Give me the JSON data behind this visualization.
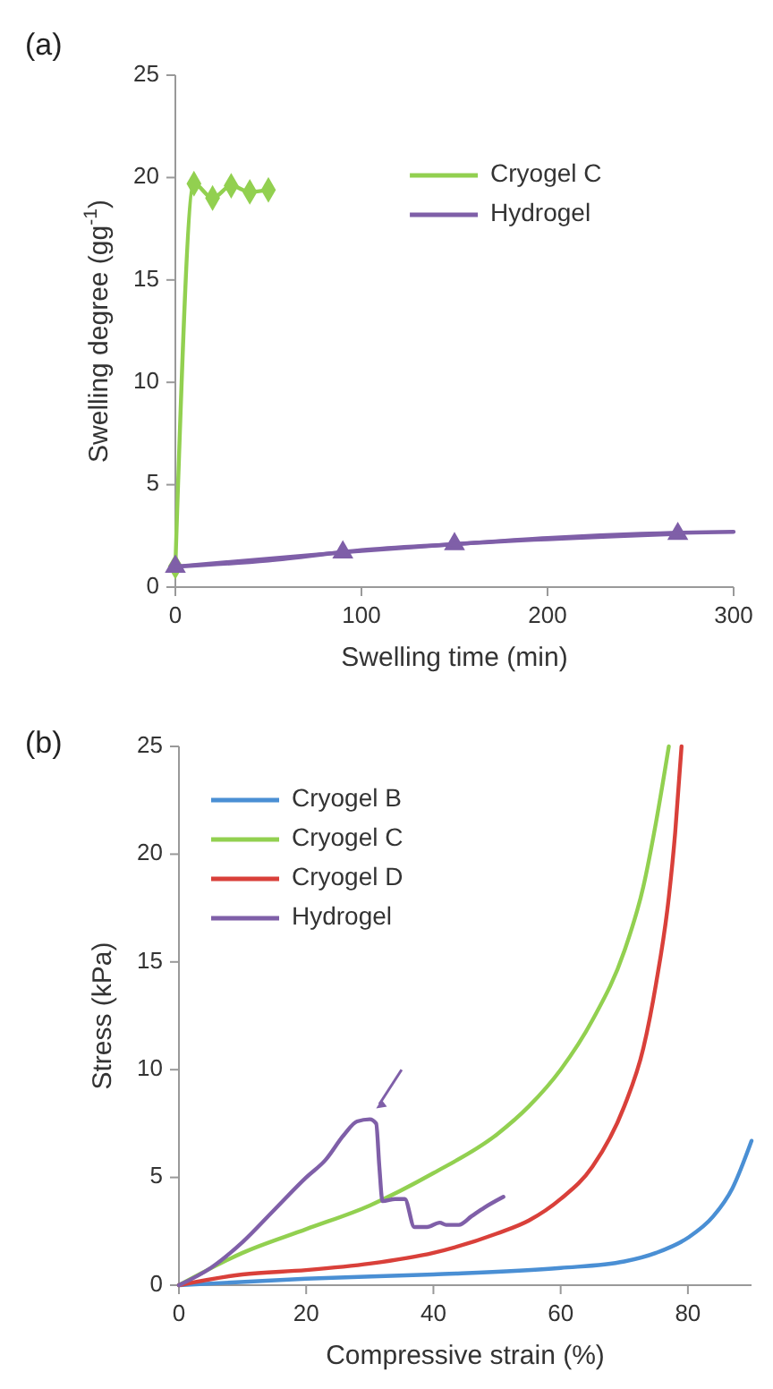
{
  "chart_data": [
    {
      "type": "line",
      "annotations": [
        "(a)"
      ],
      "xlabel": "Swelling time (min)",
      "ylabel": "Swelling degree (gg$^{-1}$)",
      "xlim": [
        0,
        300
      ],
      "xticks": [
        0,
        100,
        200,
        300
      ],
      "ylim": [
        0,
        25
      ],
      "yticks": [
        0,
        5,
        10,
        15,
        20,
        25
      ],
      "legend": "top right",
      "grid": false,
      "series": [
        {
          "name": "Cryogel C",
          "color": "#92d050",
          "marker": "diamond",
          "x": [
            0,
            10,
            20,
            30,
            40,
            50
          ],
          "values": [
            1,
            19.7,
            19.0,
            19.6,
            19.3,
            19.4
          ]
        },
        {
          "name": "Hydrogel",
          "color": "#7f5fa8",
          "marker": "triangle",
          "x": [
            0,
            90,
            150,
            270
          ],
          "values": [
            1.0,
            1.7,
            2.1,
            2.6
          ]
        },
        {
          "type": "line",
          "color": "#7f5fa8",
          "marker": "none",
          "x": [
            0,
            50,
            100,
            150,
            200,
            250,
            300
          ],
          "values": [
            1.0,
            1.3,
            1.8,
            2.1,
            2.4,
            2.6,
            2.7
          ]
        }
      ]
    },
    {
      "type": "line",
      "annotations": [
        "(b)"
      ],
      "xlabel": "Compressive strain (%)",
      "ylabel": "Stress (kPa)",
      "xlim": [
        0,
        90
      ],
      "xticks": [
        0,
        20,
        40,
        60,
        80
      ],
      "ylim": [
        0,
        25
      ],
      "yticks": [
        0,
        5,
        10,
        15,
        20,
        25
      ],
      "legend": "top left",
      "grid": false,
      "marker": "none",
      "series": [
        {
          "name": "Cryogel B",
          "color": "#4a8fd4",
          "x": [
            0,
            20,
            40,
            60,
            70,
            75,
            80,
            84,
            87,
            90
          ],
          "values": [
            0,
            0.3,
            0.5,
            0.8,
            1.1,
            1.5,
            2.2,
            3.2,
            4.5,
            6.7
          ]
        },
        {
          "name": "Cryogel C",
          "color": "#92d050",
          "x": [
            0,
            10,
            20,
            30,
            40,
            50,
            55,
            60,
            65,
            70,
            73,
            75,
            77
          ],
          "values": [
            0,
            1.5,
            2.6,
            3.7,
            5.2,
            7.0,
            8.3,
            10,
            12.3,
            15.5,
            18.5,
            21.5,
            25
          ]
        },
        {
          "name": "Cryogel D",
          "color": "#d9403a",
          "x": [
            0,
            10,
            20,
            30,
            40,
            50,
            55,
            60,
            65,
            70,
            73,
            75,
            77,
            78,
            79
          ],
          "values": [
            0,
            0.5,
            0.7,
            1.0,
            1.5,
            2.4,
            3.0,
            4.0,
            5.5,
            8.3,
            11,
            14,
            18,
            21,
            25
          ]
        },
        {
          "name": "Hydrogel",
          "color": "#7f5fa8",
          "x": [
            0,
            5,
            10,
            15,
            20,
            23,
            26,
            28,
            30,
            31,
            31.5,
            32,
            34,
            35.5,
            37,
            39,
            41,
            42,
            44,
            46,
            48,
            51
          ],
          "values": [
            0,
            0.8,
            2.0,
            3.5,
            5.0,
            5.8,
            7.0,
            7.6,
            7.7,
            7.5,
            5.5,
            3.9,
            4.0,
            4.0,
            2.7,
            2.7,
            2.9,
            2.8,
            2.8,
            3.2,
            3.6,
            4.1
          ]
        }
      ]
    }
  ]
}
